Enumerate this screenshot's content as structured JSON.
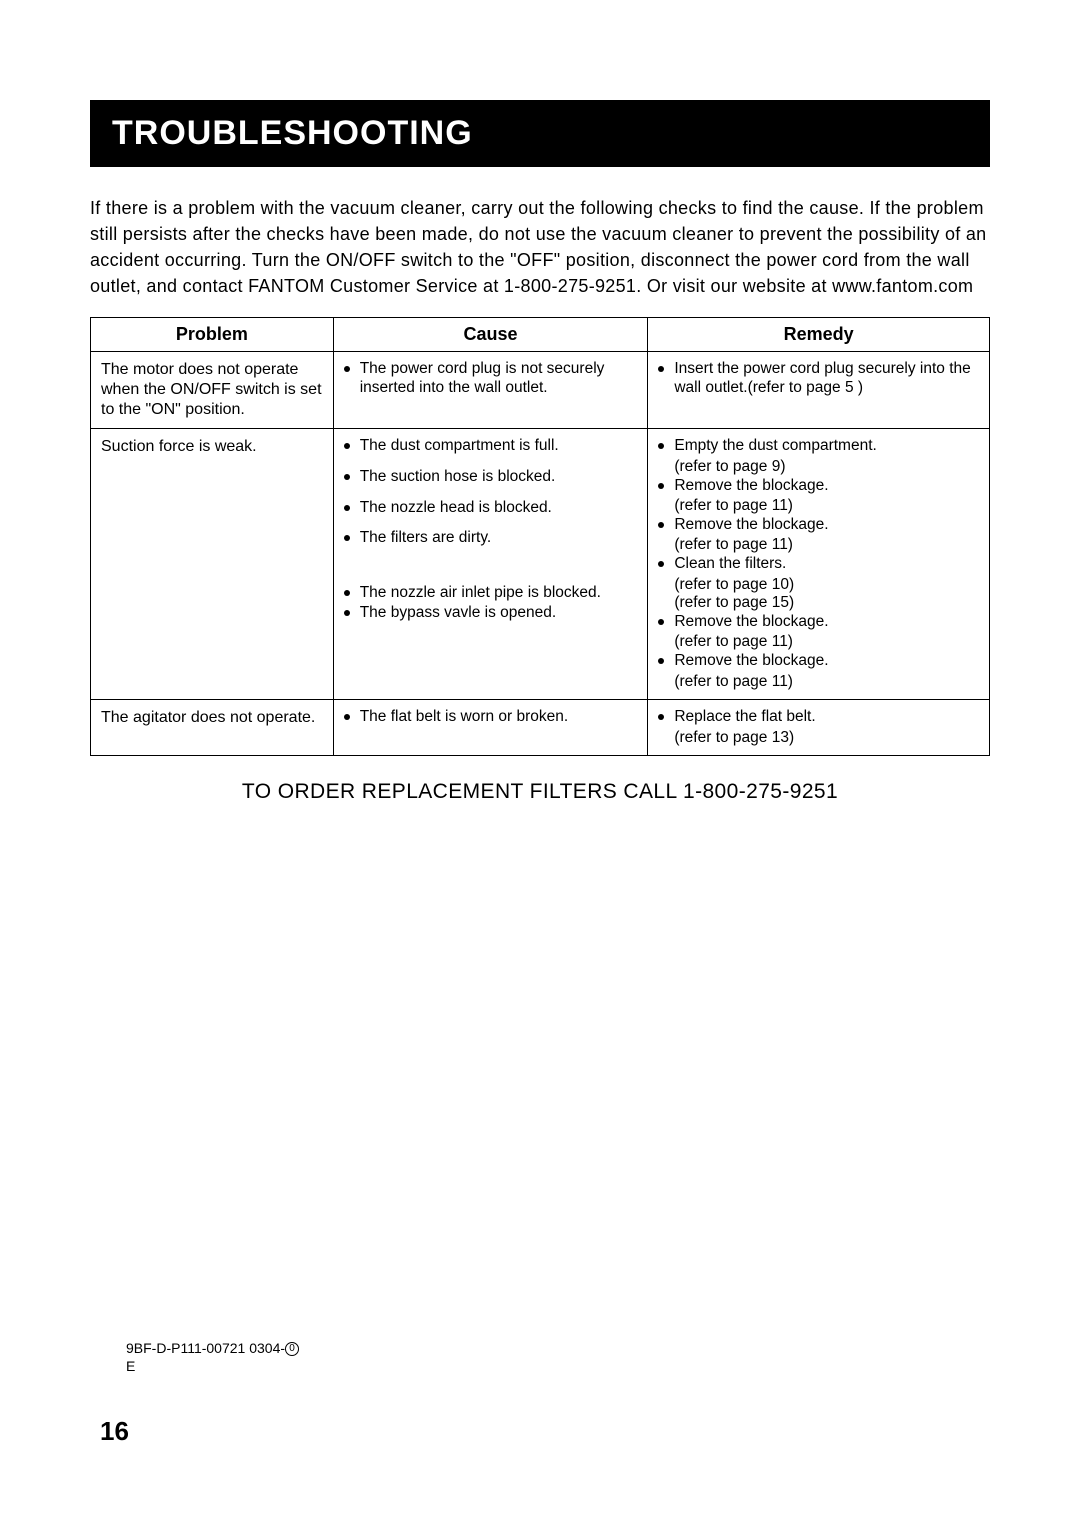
{
  "header": {
    "title": "TROUBLESHOOTING"
  },
  "intro": "If there is a problem with the vacuum cleaner, carry out the following checks to find the cause. If the problem still persists after the checks have been made, do not use the vacuum cleaner to prevent the possibility of an accident occurring. Turn the ON/OFF switch to the \"OFF\" position, disconnect the power cord from the wall outlet, and contact FANTOM Customer Service at 1-800-275-9251. Or visit our website at www.fantom.com",
  "table": {
    "headers": {
      "problem": "Problem",
      "cause": "Cause",
      "remedy": "Remedy"
    },
    "rows": [
      {
        "problem": "The motor does not operate when the ON/OFF switch is set to the \"ON\" position.",
        "causes": [
          "The  power  cord  plug is not securely inserted into the wall outlet."
        ],
        "remedies_groups": [
          {
            "main": "Insert  the  power  cord  plug securely  into  the  wall outlet.(refer  to  page  5 )"
          }
        ]
      },
      {
        "problem": "Suction force is weak.",
        "causes": [
          "The dust compartment is full.",
          "The  suction hose is blocked.",
          "The  nozzle head is blocked.",
          "The  filters  are  dirty."
        ],
        "causes2": [
          "The  nozzle air inlet pipe is blocked.",
          "The bypass vavle is opened."
        ],
        "remedies_groups": [
          {
            "main": "Empty the dust compartment.",
            "sub": "(refer to page 9)"
          },
          {
            "main": "Remove the blockage.",
            "sub": "(refer to page 11)"
          },
          {
            "main": "Remove the blockage.",
            "sub": "(refer to page 11)"
          },
          {
            "main": "Clean the filters.",
            "sub": "(refer to page 10)",
            "sub2": "(refer to page 15)"
          },
          {
            "main": "Remove the blockage.",
            "sub": "(refer to page 11)"
          },
          {
            "main": "Remove the blockage.",
            "sub": "(refer to page 11)"
          }
        ]
      },
      {
        "problem": "The agitator does not operate.",
        "causes": [
          "The flat belt is worn or broken."
        ],
        "remedies_groups": [
          {
            "main": "Replace the flat belt.",
            "sub": "(refer to page 13)"
          }
        ]
      }
    ]
  },
  "order_line": "TO ORDER REPLACEMENT FILTERS CALL 1-800-275-9251",
  "footer_code": {
    "line1_prefix": "9BF-D-P111-00721 0304-",
    "circled": "0",
    "line2": "E"
  },
  "page_number": "16"
}
